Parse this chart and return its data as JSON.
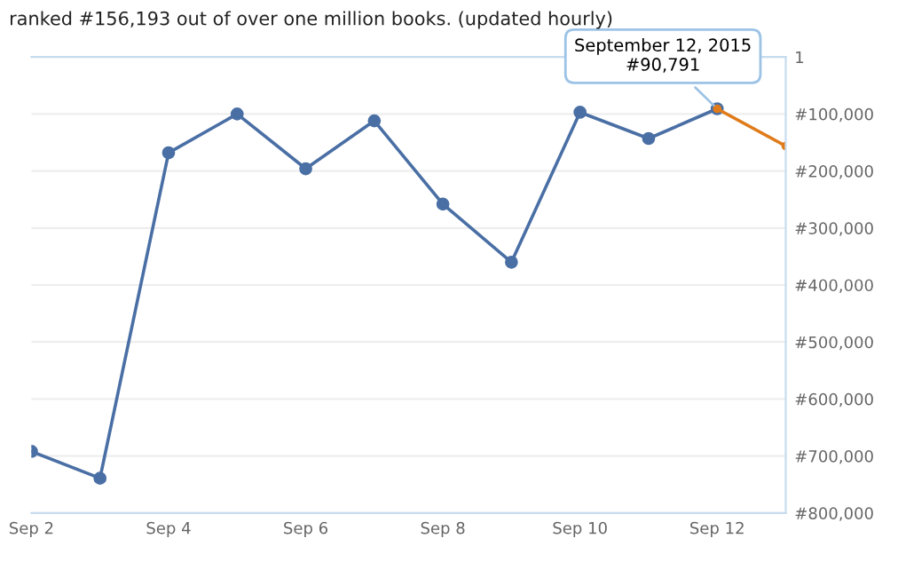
{
  "chart_data": {
    "type": "line",
    "title": "ranked #156,193 out of over one million books. (updated hourly)",
    "x": [
      "2015-09-02",
      "2015-09-03",
      "2015-09-04",
      "2015-09-05",
      "2015-09-06",
      "2015-09-07",
      "2015-09-08",
      "2015-09-09",
      "2015-09-10",
      "2015-09-11",
      "2015-09-12",
      "2015-09-13"
    ],
    "series": [
      {
        "color": "#4a6fa5",
        "values": [
          692000,
          739000,
          168000,
          100000,
          196000,
          112000,
          258000,
          360000,
          97000,
          143000,
          90791,
          null
        ]
      },
      {
        "color": "#e07b1a",
        "values": [
          null,
          null,
          null,
          null,
          null,
          null,
          null,
          null,
          null,
          null,
          90791,
          156193
        ]
      }
    ],
    "xlim": [
      "2015-09-02",
      "2015-09-13"
    ],
    "xticks": [
      {
        "value": "2015-09-02",
        "label": "Sep 2"
      },
      {
        "value": "2015-09-04",
        "label": "Sep 4"
      },
      {
        "value": "2015-09-06",
        "label": "Sep 6"
      },
      {
        "value": "2015-09-08",
        "label": "Sep 8"
      },
      {
        "value": "2015-09-10",
        "label": "Sep 10"
      },
      {
        "value": "2015-09-12",
        "label": "Sep 12"
      }
    ],
    "ylim": [
      800000,
      1
    ],
    "yticks": [
      1,
      {
        "value": 100000,
        "label": "#100,000"
      },
      {
        "value": 200000,
        "label": "#200,000"
      },
      {
        "value": 300000,
        "label": "#300,000"
      },
      {
        "value": 400000,
        "label": "#400,000"
      },
      {
        "value": 500000,
        "label": "#500,000"
      },
      {
        "value": 600000,
        "label": "#600,000"
      },
      {
        "value": 700000,
        "label": "#700,000"
      },
      {
        "value": 800000,
        "label": "#800,000"
      }
    ],
    "annotations": [
      {
        "text": "September 12, 2015\n#90,791",
        "x": "2015-09-12",
        "y": 90791
      }
    ],
    "grid": "y",
    "marker": "circle",
    "line_style": "solid"
  }
}
